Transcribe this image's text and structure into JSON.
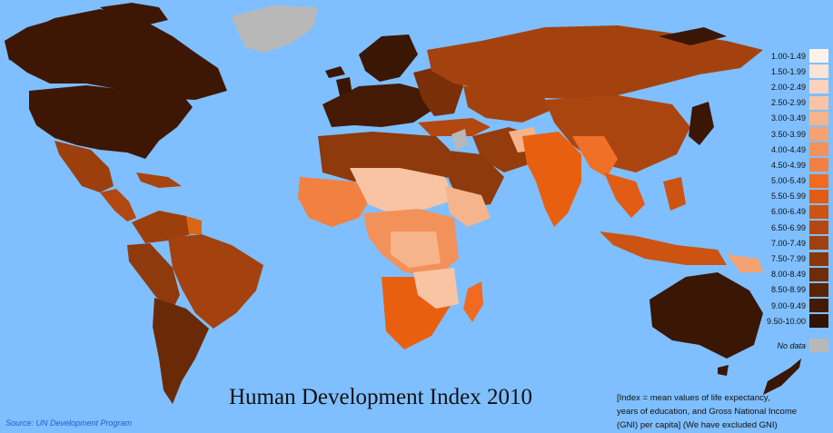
{
  "title": "Human Development Index 2010",
  "source": "Source: UN Development Program",
  "note": [
    "[Index = mean values of life expectancy,",
    "years of education, and Gross National Income",
    "(GNI) per capita] (We have excluded GNI)"
  ],
  "colors": {
    "ocean": "#7fbfff",
    "no_data": "#b8b8b8"
  },
  "legend": {
    "items": [
      {
        "label": "1.00-1.49",
        "color": "#fdf2ea"
      },
      {
        "label": "1.50-1.99",
        "color": "#fbe4d5"
      },
      {
        "label": "2.00-2.49",
        "color": "#f9d3bc"
      },
      {
        "label": "2.50-2.99",
        "color": "#f8c4a4"
      },
      {
        "label": "3.00-3.49",
        "color": "#f6b48c"
      },
      {
        "label": "3.50-3.99",
        "color": "#f5a273"
      },
      {
        "label": "4.00-4.49",
        "color": "#f3915a"
      },
      {
        "label": "4.50-4.99",
        "color": "#f28040"
      },
      {
        "label": "5.00-5.49",
        "color": "#f06a22"
      },
      {
        "label": "5.50-5.99",
        "color": "#e25c15"
      },
      {
        "label": "6.00-6.49",
        "color": "#cc5312"
      },
      {
        "label": "6.50-6.99",
        "color": "#b54810"
      },
      {
        "label": "7.00-7.49",
        "color": "#a0400e"
      },
      {
        "label": "7.50-7.99",
        "color": "#8a360b"
      },
      {
        "label": "8.00-8.49",
        "color": "#702b08"
      },
      {
        "label": "8.50-8.99",
        "color": "#5a2206"
      },
      {
        "label": "9.00-9.49",
        "color": "#451a04"
      },
      {
        "label": "9.50-10.00",
        "color": "#331303"
      }
    ],
    "no_data": {
      "label": "No data",
      "color": "#b8b8b8"
    }
  }
}
